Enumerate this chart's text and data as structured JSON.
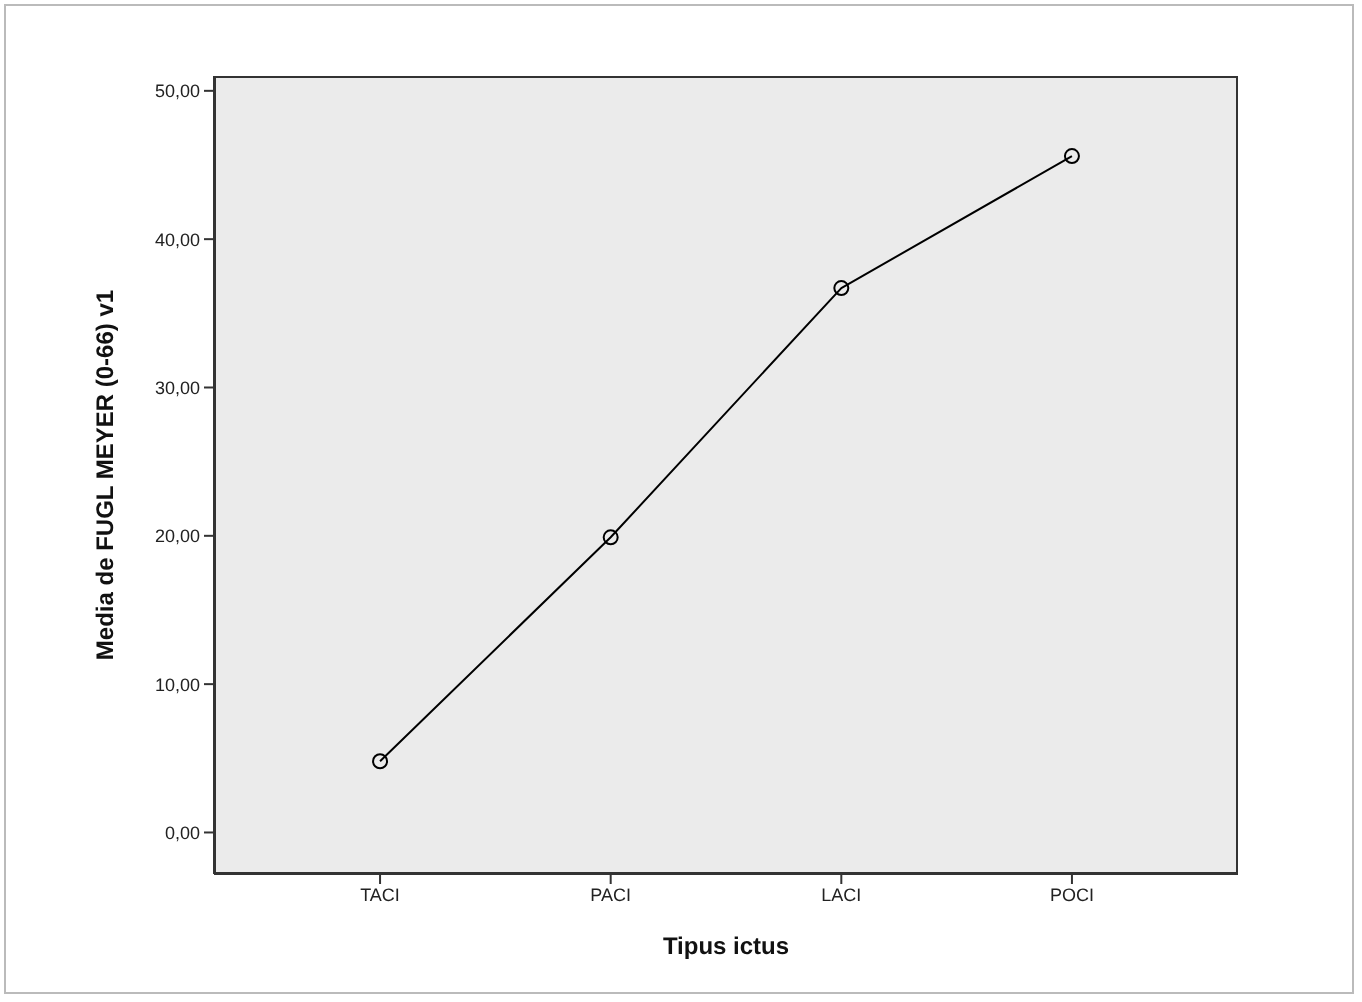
{
  "chart_data": {
    "type": "line",
    "xlabel": "Tipus ictus",
    "ylabel": "Media de FUGL MEYER (0-66) v1",
    "categories": [
      "TACI",
      "PACI",
      "LACI",
      "POCI"
    ],
    "series": [
      {
        "color": "#000000",
        "values": [
          4.8,
          19.9,
          36.7,
          45.6
        ]
      }
    ],
    "ylim": [
      -2.8,
      51
    ],
    "yticks": [
      {
        "value": 0,
        "label": "0,00"
      },
      {
        "value": 10,
        "label": "10,00"
      },
      {
        "value": 20,
        "label": "20,00"
      },
      {
        "value": 30,
        "label": "30,00"
      },
      {
        "value": 40,
        "label": "40,00"
      },
      {
        "value": 50,
        "label": "50,00"
      }
    ],
    "marker": "circle",
    "line_style": "solid",
    "grid": false,
    "legend": false
  }
}
